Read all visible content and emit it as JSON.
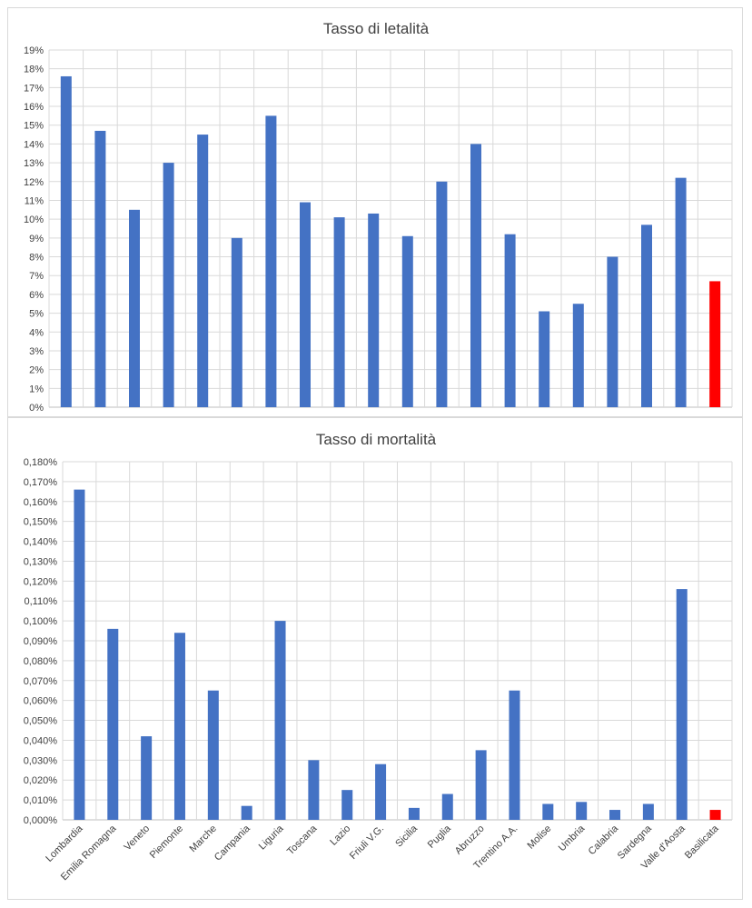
{
  "chart_data": [
    {
      "type": "bar",
      "title": "Tasso di letalità",
      "categories": [
        "Lombardia",
        "Emilia Romagna",
        "Veneto",
        "Piemonte",
        "Marche",
        "Campania",
        "Liguria",
        "Toscana",
        "Lazio",
        "Friuli V.G.",
        "Sicilia",
        "Puglia",
        "Abruzzo",
        "Trentino A.A.",
        "Molise",
        "Umbria",
        "Calabria",
        "Sardegna",
        "Valle d'Aosta",
        "Basilicata"
      ],
      "values": [
        17.6,
        14.7,
        10.5,
        13.0,
        14.5,
        9.0,
        15.5,
        10.9,
        10.1,
        10.3,
        9.1,
        12.0,
        14.0,
        9.2,
        5.1,
        5.5,
        8.0,
        9.7,
        12.2,
        6.7
      ],
      "ylim": [
        0,
        19
      ],
      "ytick_step": 1,
      "ytick_labels": [
        "0%",
        "1%",
        "2%",
        "3%",
        "4%",
        "5%",
        "6%",
        "7%",
        "8%",
        "9%",
        "10%",
        "11%",
        "12%",
        "13%",
        "14%",
        "15%",
        "16%",
        "17%",
        "18%",
        "19%"
      ],
      "grid": true,
      "show_category_labels": false,
      "colors": {
        "bar": "#4472c4",
        "highlight": "#ff0000"
      },
      "highlight_index": 19
    },
    {
      "type": "bar",
      "title": "Tasso di mortalità",
      "categories": [
        "Lombardia",
        "Emilia Romagna",
        "Veneto",
        "Piemonte",
        "Marche",
        "Campania",
        "Liguria",
        "Toscana",
        "Lazio",
        "Friuli V.G.",
        "Sicilia",
        "Puglia",
        "Abruzzo",
        "Trentino A.A.",
        "Molise",
        "Umbria",
        "Calabria",
        "Sardegna",
        "Valle d'Aosta",
        "Basilicata"
      ],
      "values": [
        0.166,
        0.096,
        0.042,
        0.094,
        0.065,
        0.007,
        0.1,
        0.03,
        0.015,
        0.028,
        0.006,
        0.013,
        0.035,
        0.065,
        0.008,
        0.009,
        0.005,
        0.008,
        0.116,
        0.005
      ],
      "ylim": [
        0,
        0.18
      ],
      "ytick_step": 0.01,
      "ytick_labels": [
        "0,000%",
        "0,010%",
        "0,020%",
        "0,030%",
        "0,040%",
        "0,050%",
        "0,060%",
        "0,070%",
        "0,080%",
        "0,090%",
        "0,100%",
        "0,110%",
        "0,120%",
        "0,130%",
        "0,140%",
        "0,150%",
        "0,160%",
        "0,170%",
        "0,180%"
      ],
      "grid": true,
      "show_category_labels": true,
      "colors": {
        "bar": "#4472c4",
        "highlight": "#ff0000"
      },
      "highlight_index": 19
    }
  ]
}
